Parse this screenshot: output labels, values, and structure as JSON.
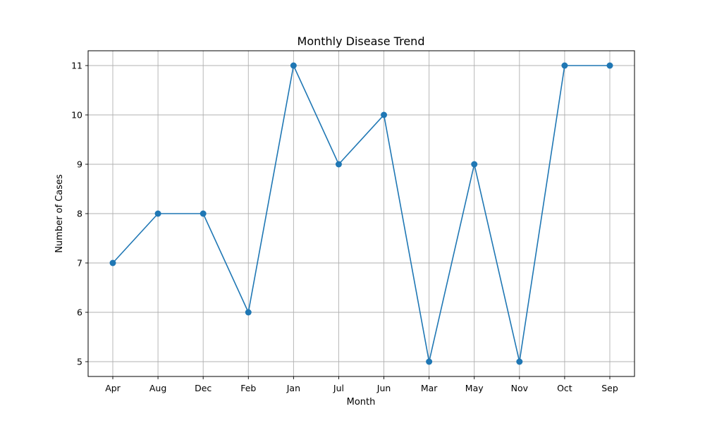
{
  "chart_data": {
    "type": "line",
    "title": "Monthly Disease Trend",
    "xlabel": "Month",
    "ylabel": "Number of Cases",
    "categories": [
      "Apr",
      "Aug",
      "Dec",
      "Feb",
      "Jan",
      "Jul",
      "Jun",
      "Mar",
      "May",
      "Nov",
      "Oct",
      "Sep"
    ],
    "series": [
      {
        "values": [
          7,
          8,
          8,
          6,
          11,
          9,
          10,
          5,
          9,
          5,
          11,
          11
        ]
      }
    ],
    "ylim": [
      4.7,
      11.3
    ],
    "yticks": [
      5,
      6,
      7,
      8,
      9,
      10,
      11
    ],
    "grid": true,
    "marker": "circle",
    "colors": {
      "line": "#1f77b4",
      "grid": "#b0b0b0"
    }
  }
}
